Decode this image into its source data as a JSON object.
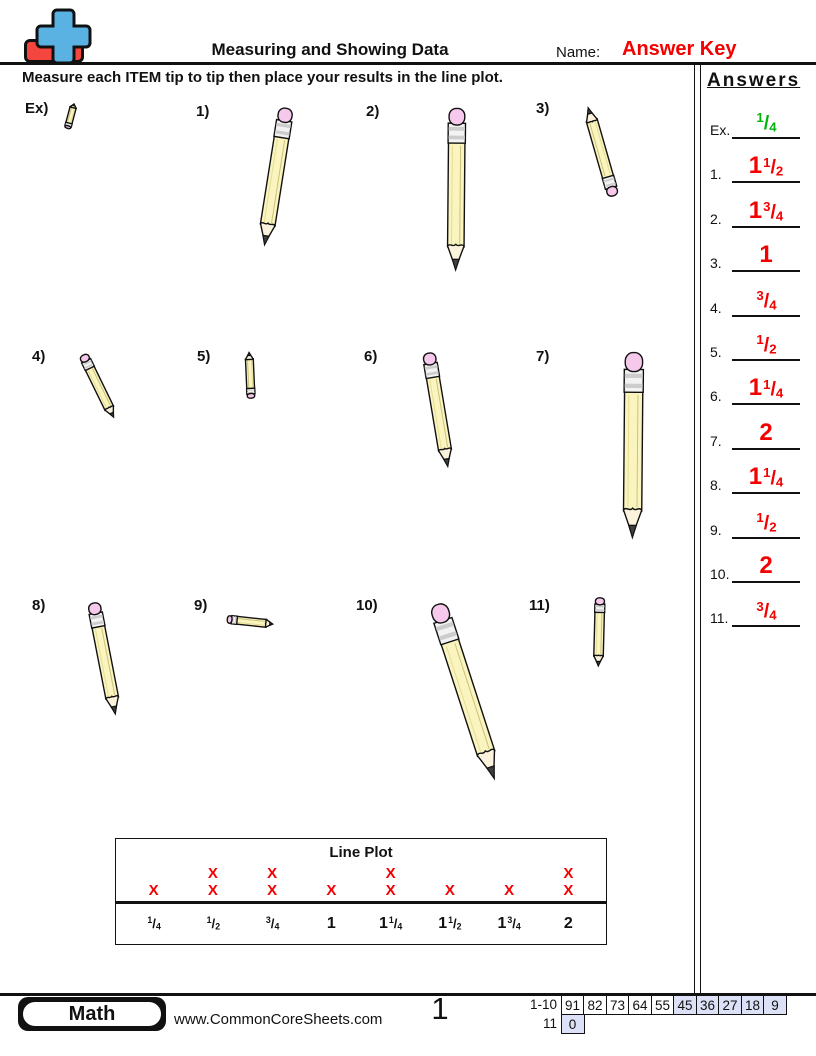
{
  "header": {
    "title": "Measuring and Showing Data",
    "name_label": "Name:",
    "answer_key": "Answer Key",
    "logo": {
      "plus_color": "#59B2E2",
      "minus_color": "#F4453E"
    }
  },
  "instruction": "Measure each ITEM tip to tip then place your results in the line plot.",
  "answers": {
    "title": "Answers",
    "correct_color": "#F40000",
    "example_color": "#00B50C",
    "items": [
      {
        "label": "Ex.",
        "whole": "",
        "num": "1",
        "den": "4",
        "example": true
      },
      {
        "label": "1.",
        "whole": "1",
        "num": "1",
        "den": "2"
      },
      {
        "label": "2.",
        "whole": "1",
        "num": "3",
        "den": "4"
      },
      {
        "label": "3.",
        "whole": "1",
        "num": "",
        "den": ""
      },
      {
        "label": "4.",
        "whole": "",
        "num": "3",
        "den": "4"
      },
      {
        "label": "5.",
        "whole": "",
        "num": "1",
        "den": "2"
      },
      {
        "label": "6.",
        "whole": "1",
        "num": "1",
        "den": "4"
      },
      {
        "label": "7.",
        "whole": "2",
        "num": "",
        "den": ""
      },
      {
        "label": "8.",
        "whole": "1",
        "num": "1",
        "den": "4"
      },
      {
        "label": "9.",
        "whole": "",
        "num": "1",
        "den": "2"
      },
      {
        "label": "10.",
        "whole": "2",
        "num": "",
        "den": ""
      },
      {
        "label": "11.",
        "whole": "",
        "num": "3",
        "den": "4"
      }
    ]
  },
  "problems": [
    {
      "id": "ex",
      "label": "Ex)",
      "length_inches": "1/4"
    },
    {
      "id": "1",
      "label": "1)",
      "length_inches": "1 1/2"
    },
    {
      "id": "2",
      "label": "2)",
      "length_inches": "1 3/4"
    },
    {
      "id": "3",
      "label": "3)",
      "length_inches": "1"
    },
    {
      "id": "4",
      "label": "4)",
      "length_inches": "3/4"
    },
    {
      "id": "5",
      "label": "5)",
      "length_inches": "1/2"
    },
    {
      "id": "6",
      "label": "6)",
      "length_inches": "1 1/4"
    },
    {
      "id": "7",
      "label": "7)",
      "length_inches": "2"
    },
    {
      "id": "8",
      "label": "8)",
      "length_inches": "1 1/4"
    },
    {
      "id": "9",
      "label": "9)",
      "length_inches": "1/2"
    },
    {
      "id": "10",
      "label": "10)",
      "length_inches": "2"
    },
    {
      "id": "11",
      "label": "11)",
      "length_inches": "3/4"
    }
  ],
  "line_plot": {
    "title": "Line Plot",
    "x_symbol": "X",
    "x_color": "#F40000",
    "categories": [
      {
        "whole": "",
        "num": "1",
        "den": "4"
      },
      {
        "whole": "",
        "num": "1",
        "den": "2"
      },
      {
        "whole": "",
        "num": "3",
        "den": "4"
      },
      {
        "whole": "1",
        "num": "",
        "den": ""
      },
      {
        "whole": "1",
        "num": "1",
        "den": "4"
      },
      {
        "whole": "1",
        "num": "1",
        "den": "2"
      },
      {
        "whole": "1",
        "num": "3",
        "den": "4"
      },
      {
        "whole": "2",
        "num": "",
        "den": ""
      }
    ],
    "counts": [
      1,
      2,
      2,
      1,
      2,
      1,
      1,
      2
    ]
  },
  "chart_data": {
    "type": "line_plot",
    "title": "Line Plot",
    "categories": [
      "1/4",
      "1/2",
      "3/4",
      "1",
      "1 1/4",
      "1 1/2",
      "1 3/4",
      "2"
    ],
    "values": [
      1,
      2,
      2,
      1,
      2,
      1,
      1,
      2
    ],
    "marker": "X",
    "units": "inches"
  },
  "footer": {
    "subject": "Math",
    "website": "www.CommonCoreSheets.com",
    "page_number": "1",
    "score_table": {
      "row1_label": "1-10",
      "row1_values": [
        "91",
        "82",
        "73",
        "64",
        "55",
        "45",
        "36",
        "27",
        "18",
        "9"
      ],
      "row1_highlighted": [
        false,
        false,
        false,
        false,
        false,
        true,
        true,
        true,
        true,
        true
      ],
      "row2_label": "11",
      "row2_values": [
        "0"
      ],
      "row2_highlighted": [
        true
      ],
      "highlight_color": "#DCE1F7"
    }
  }
}
